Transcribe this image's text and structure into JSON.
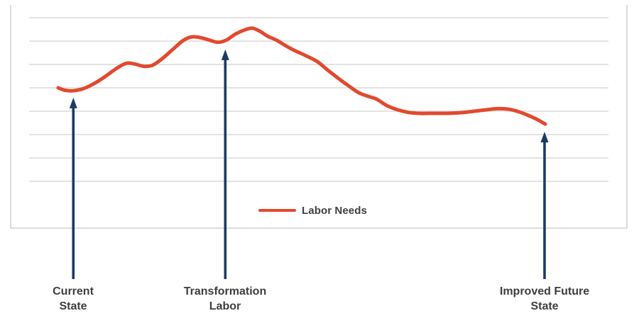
{
  "chart_data": {
    "type": "line",
    "title": "",
    "xlabel": "",
    "ylabel": "",
    "x_axis": {
      "range": [
        0,
        100
      ],
      "tick_labels_visible": false
    },
    "y_axis": {
      "range": [
        0,
        9.55
      ],
      "tick_labels_visible": false,
      "gridline_levels": [
        2,
        3,
        4,
        5,
        6,
        7,
        8,
        9
      ]
    },
    "grid": "horizontal-only",
    "legend": {
      "position": "inside-bottom-center",
      "label": "Labor Needs"
    },
    "series": [
      {
        "name": "Labor Needs",
        "color": "#e2492e",
        "points": [
          [
            0,
            6.0
          ],
          [
            1.5,
            5.89
          ],
          [
            3.2,
            5.88
          ],
          [
            5.2,
            5.97
          ],
          [
            7.6,
            6.21
          ],
          [
            9.9,
            6.52
          ],
          [
            12.1,
            6.85
          ],
          [
            14,
            7.05
          ],
          [
            15.7,
            7.02
          ],
          [
            17.6,
            6.92
          ],
          [
            19.4,
            6.97
          ],
          [
            21.3,
            7.24
          ],
          [
            23.5,
            7.64
          ],
          [
            25.7,
            8.03
          ],
          [
            27.4,
            8.18
          ],
          [
            29.2,
            8.15
          ],
          [
            30.9,
            8.05
          ],
          [
            32.7,
            7.95
          ],
          [
            34.4,
            8.03
          ],
          [
            36.4,
            8.3
          ],
          [
            38.3,
            8.48
          ],
          [
            39.9,
            8.55
          ],
          [
            41.4,
            8.42
          ],
          [
            43,
            8.21
          ],
          [
            44.9,
            8.03
          ],
          [
            46.8,
            7.79
          ],
          [
            48.7,
            7.58
          ],
          [
            50.7,
            7.39
          ],
          [
            53.2,
            7.12
          ],
          [
            55.5,
            6.73
          ],
          [
            58,
            6.33
          ],
          [
            59.8,
            6.06
          ],
          [
            61.7,
            5.79
          ],
          [
            63.6,
            5.64
          ],
          [
            65.3,
            5.52
          ],
          [
            67.5,
            5.24
          ],
          [
            69.7,
            5.06
          ],
          [
            71.9,
            4.95
          ],
          [
            74.1,
            4.91
          ],
          [
            77,
            4.91
          ],
          [
            79.9,
            4.91
          ],
          [
            82.8,
            4.94
          ],
          [
            85.4,
            5.0
          ],
          [
            87.9,
            5.06
          ],
          [
            90.1,
            5.11
          ],
          [
            92.3,
            5.09
          ],
          [
            94.2,
            5.0
          ],
          [
            96.2,
            4.85
          ],
          [
            98.1,
            4.67
          ],
          [
            100,
            4.45
          ]
        ]
      }
    ],
    "annotations": [
      {
        "id": "current-state",
        "label_line1": "Current",
        "label_line2": "State",
        "x_pct": 3.1,
        "arrow_tip_level": 5.58,
        "color": "#1d3a63"
      },
      {
        "id": "transformation-labor",
        "label_line1": "Transformation",
        "label_line2": "Labor",
        "x_pct": 34.3,
        "arrow_tip_level": 7.64,
        "color": "#1d3a63"
      },
      {
        "id": "improved-future-state",
        "label_line1": "Improved Future",
        "label_line2": "State",
        "x_pct": 99.85,
        "arrow_tip_level": 4.12,
        "color": "#1d3a63"
      }
    ],
    "colors": {
      "line": "#e2492e",
      "arrow": "#1d3a63",
      "gridline": "#dadada",
      "frame": "#d2d2d2",
      "label_text": "#3e3e3e",
      "legend_text": "#404040"
    }
  }
}
